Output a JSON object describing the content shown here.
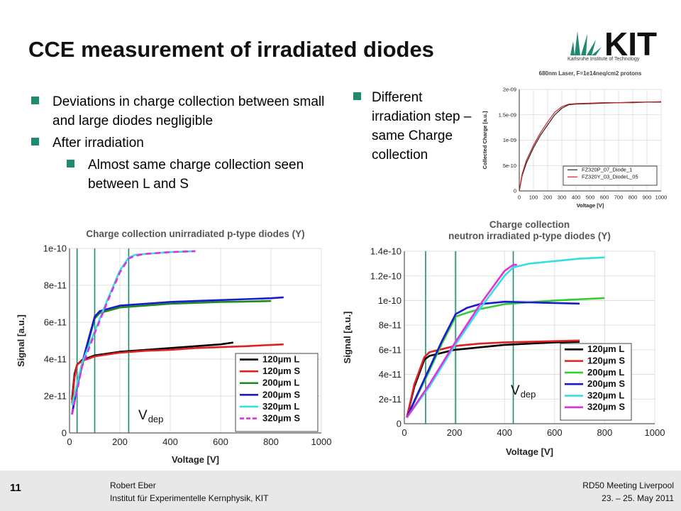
{
  "slide": {
    "title": "CCE measurement of irradiated diodes",
    "left_bullets": [
      {
        "text": "Deviations in charge collection between small and large diodes negligible",
        "level": 1
      },
      {
        "text": "After irradiation",
        "level": 1
      },
      {
        "text": "Almost same charge collection seen between L and S",
        "level": 2
      }
    ],
    "right_bullets": [
      {
        "text": "Different irradiation step – same Charge collection",
        "level": 1
      }
    ],
    "logo": {
      "text": "KIT",
      "subtitle": "Karlsruhe Institute of Technology"
    },
    "vdep_label_left": {
      "main": "V",
      "sub": "dep"
    },
    "vdep_label_right": {
      "main": "V",
      "sub": "dep"
    }
  },
  "footer": {
    "page_number": "11",
    "author": "Robert Eber",
    "institute": "Institut für Experimentelle Kernphysik, KIT",
    "meeting": "RD50 Meeting Liverpool",
    "date": "23. – 25. May 2011"
  },
  "colors": {
    "accent": "#1f8a70",
    "vdep_line": "#1f8a70",
    "footer_bg": "#e8e8e8"
  },
  "chart_data": [
    {
      "type": "line",
      "title": "680nm Laser, F=1e14neq/cm2 protons",
      "xlabel": "Voltage [V]",
      "ylabel": "Collected Charge [a.u.]",
      "xlim": [
        0,
        1000
      ],
      "ylim": [
        0,
        2e-09
      ],
      "xticks": [
        0,
        100,
        200,
        300,
        400,
        500,
        600,
        700,
        800,
        900,
        1000
      ],
      "xtick_labels": [
        "0",
        "100",
        "200",
        "300",
        "400",
        "500",
        "600",
        "700",
        "800",
        "900",
        "1000"
      ],
      "yticks": [
        0,
        5e-10,
        1e-09,
        1.5e-09,
        2e-09
      ],
      "ytick_labels": [
        "0",
        "5e-10",
        "1e-09",
        "1.5e-09",
        "2e-09"
      ],
      "grid": true,
      "legend_position": "bottom-right",
      "series": [
        {
          "name": "FZ320P_07_Diode_1",
          "color": "#222222",
          "dashed": false,
          "x": [
            0,
            20,
            50,
            100,
            150,
            200,
            250,
            300,
            350,
            400,
            500,
            600,
            700,
            800,
            900,
            1000
          ],
          "y": [
            0,
            3e-10,
            5.5e-10,
            8.5e-10,
            1.1e-09,
            1.3e-09,
            1.5e-09,
            1.63e-09,
            1.7e-09,
            1.71e-09,
            1.72e-09,
            1.73e-09,
            1.74e-09,
            1.74e-09,
            1.75e-09,
            1.75e-09
          ]
        },
        {
          "name": "FZ320Y_03_DiodeL_05",
          "color": "#cc2222",
          "dashed": false,
          "x": [
            0,
            20,
            50,
            100,
            150,
            200,
            250,
            300,
            350,
            400,
            500,
            600,
            700,
            800,
            900,
            1000
          ],
          "y": [
            0,
            3.3e-10,
            6e-10,
            9e-10,
            1.15e-09,
            1.36e-09,
            1.55e-09,
            1.66e-09,
            1.71e-09,
            1.72e-09,
            1.73e-09,
            1.74e-09,
            1.74e-09,
            1.75e-09,
            1.75e-09,
            1.76e-09
          ]
        }
      ]
    },
    {
      "type": "line",
      "title": "Charge collection unirradiated p-type diodes (Y)",
      "xlabel": "Voltage [V]",
      "ylabel": "Signal [a.u.]",
      "xlim": [
        0,
        1000
      ],
      "ylim": [
        0,
        1e-10
      ],
      "xticks": [
        0,
        200,
        400,
        600,
        800,
        1000
      ],
      "xtick_labels": [
        "0",
        "200",
        "400",
        "600",
        "800",
        "1000"
      ],
      "yticks": [
        0,
        2e-11,
        4e-11,
        6e-11,
        8e-11,
        1e-10
      ],
      "ytick_labels": [
        "0",
        "2e-11",
        "4e-11",
        "6e-11",
        "8e-11",
        "1e-10"
      ],
      "grid": true,
      "legend_position": "bottom-right",
      "vdep_lines": [
        30,
        100,
        235
      ],
      "series": [
        {
          "name": "120µm L",
          "color": "#000000",
          "dashed": false,
          "x": [
            10,
            20,
            30,
            50,
            100,
            200,
            300,
            400,
            500,
            600,
            650
          ],
          "y": [
            1.8e-11,
            3.2e-11,
            3.7e-11,
            3.95e-11,
            4.2e-11,
            4.4e-11,
            4.5e-11,
            4.6e-11,
            4.7e-11,
            4.8e-11,
            4.9e-11
          ]
        },
        {
          "name": "120µm S",
          "color": "#e02020",
          "dashed": false,
          "x": [
            10,
            20,
            30,
            50,
            100,
            200,
            300,
            400,
            500,
            600,
            700,
            770,
            850
          ],
          "y": [
            1.6e-11,
            3e-11,
            3.7e-11,
            3.9e-11,
            4.15e-11,
            4.35e-11,
            4.45e-11,
            4.5e-11,
            4.6e-11,
            4.65e-11,
            4.7e-11,
            4.75e-11,
            4.8e-11
          ]
        },
        {
          "name": "200µm L",
          "color": "#1a8a1a",
          "dashed": false,
          "x": [
            10,
            30,
            60,
            100,
            120,
            200,
            300,
            400,
            500,
            600,
            700,
            800
          ],
          "y": [
            1e-11,
            2.5e-11,
            4.2e-11,
            6.2e-11,
            6.5e-11,
            6.8e-11,
            6.9e-11,
            7e-11,
            7.05e-11,
            7.1e-11,
            7.12e-11,
            7.15e-11
          ]
        },
        {
          "name": "200µm S",
          "color": "#1a1ad0",
          "dashed": false,
          "x": [
            10,
            30,
            60,
            100,
            120,
            200,
            300,
            400,
            500,
            600,
            700,
            800,
            850
          ],
          "y": [
            1e-11,
            2.6e-11,
            4.3e-11,
            6.3e-11,
            6.6e-11,
            6.9e-11,
            7e-11,
            7.1e-11,
            7.15e-11,
            7.2e-11,
            7.25e-11,
            7.3e-11,
            7.35e-11
          ]
        },
        {
          "name": "320µm L",
          "color": "#33e0e0",
          "dashed": false,
          "x": [
            10,
            50,
            100,
            150,
            200,
            235,
            260,
            300,
            400,
            500
          ],
          "y": [
            1.5e-11,
            3.8e-11,
            5.5e-11,
            7.2e-11,
            8.8e-11,
            9.5e-11,
            9.65e-11,
            9.7e-11,
            9.8e-11,
            9.85e-11
          ]
        },
        {
          "name": "320µm S",
          "color": "#e030e0",
          "dashed": true,
          "x": [
            10,
            50,
            100,
            150,
            200,
            235,
            260,
            300,
            400,
            500
          ],
          "y": [
            1e-11,
            3.6e-11,
            5.4e-11,
            7.1e-11,
            8.7e-11,
            9.45e-11,
            9.6e-11,
            9.7e-11,
            9.8e-11,
            9.85e-11
          ]
        }
      ]
    },
    {
      "type": "line",
      "title": "Charge collection\nneutron irradiated p-type diodes (Y)",
      "xlabel": "Voltage [V]",
      "ylabel": "Signal [a.u.]",
      "xlim": [
        0,
        1000
      ],
      "ylim": [
        0,
        1.4e-10
      ],
      "xticks": [
        0,
        200,
        400,
        600,
        800,
        1000
      ],
      "xtick_labels": [
        "0",
        "200",
        "400",
        "600",
        "800",
        "1000"
      ],
      "yticks": [
        0,
        2e-11,
        4e-11,
        6e-11,
        8e-11,
        1e-10,
        1.2e-10,
        1.4e-10
      ],
      "ytick_labels": [
        "0",
        "2e-11",
        "4e-11",
        "6e-11",
        "8e-11",
        "1e-10",
        "1.2e-10",
        "1.4e-10"
      ],
      "grid": true,
      "legend_position": "bottom-right",
      "vdep_lines": [
        85,
        205,
        435
      ],
      "series": [
        {
          "name": "120µm L",
          "color": "#000000",
          "dashed": false,
          "x": [
            10,
            40,
            80,
            100,
            200,
            300,
            400,
            500,
            600,
            700
          ],
          "y": [
            5e-12,
            3e-11,
            5.2e-11,
            5.5e-11,
            6e-11,
            6.2e-11,
            6.4e-11,
            6.5e-11,
            6.6e-11,
            6.65e-11
          ]
        },
        {
          "name": "120µm S",
          "color": "#e02020",
          "dashed": false,
          "x": [
            10,
            40,
            80,
            100,
            200,
            300,
            400,
            500,
            600,
            700
          ],
          "y": [
            5e-12,
            3.2e-11,
            5.4e-11,
            5.8e-11,
            6.3e-11,
            6.5e-11,
            6.6e-11,
            6.65e-11,
            6.7e-11,
            6.75e-11
          ]
        },
        {
          "name": "200µm L",
          "color": "#33cc33",
          "dashed": false,
          "x": [
            10,
            50,
            100,
            150,
            205,
            250,
            300,
            400,
            500,
            600,
            700,
            800
          ],
          "y": [
            5e-12,
            2.2e-11,
            4.3e-11,
            6.5e-11,
            8.7e-11,
            9e-11,
            9.3e-11,
            9.7e-11,
            9.85e-11,
            1e-10,
            1.01e-10,
            1.02e-10
          ]
        },
        {
          "name": "200µm S",
          "color": "#1a1ad0",
          "dashed": false,
          "x": [
            10,
            50,
            100,
            150,
            205,
            250,
            300,
            400,
            500,
            600,
            700
          ],
          "y": [
            5e-12,
            2.3e-11,
            4.5e-11,
            6.7e-11,
            8.9e-11,
            9.4e-11,
            9.7e-11,
            9.9e-11,
            9.85e-11,
            9.8e-11,
            9.75e-11
          ]
        },
        {
          "name": "320µm L",
          "color": "#33e0e0",
          "dashed": false,
          "x": [
            10,
            100,
            200,
            300,
            400,
            435,
            500,
            600,
            700,
            800
          ],
          "y": [
            5e-12,
            3e-11,
            6.3e-11,
            9.3e-11,
            1.2e-10,
            1.27e-10,
            1.3e-10,
            1.32e-10,
            1.34e-10,
            1.35e-10
          ]
        },
        {
          "name": "320µm S",
          "color": "#e030e0",
          "dashed": false,
          "x": [
            10,
            100,
            200,
            300,
            400,
            435,
            450
          ],
          "y": [
            5e-12,
            3.2e-11,
            6.5e-11,
            9.6e-11,
            1.24e-10,
            1.29e-10,
            1.29e-10
          ]
        }
      ]
    }
  ]
}
